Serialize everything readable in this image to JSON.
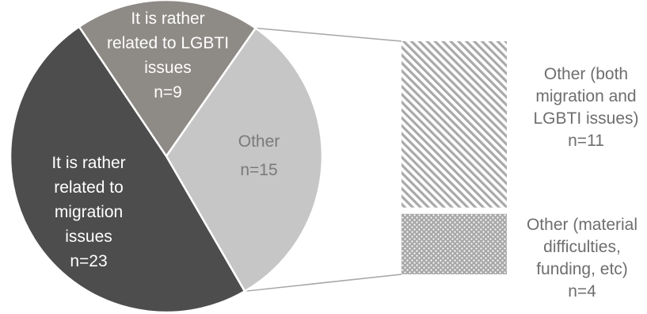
{
  "chart_data": {
    "type": "pie",
    "subtype": "pie-of-bar",
    "slices": [
      {
        "label_lines": [
          "It is rather",
          "related to LGBTI",
          "issues",
          "n=9"
        ],
        "value": 9,
        "color": "#8e8a86",
        "text_color": "#ffffff"
      },
      {
        "label_lines": [
          "Other",
          "n=15"
        ],
        "value": 15,
        "color": "#c6c6c6",
        "text_color": "#7a7a7a"
      },
      {
        "label_lines": [
          "It is rather",
          "related to",
          "migration",
          "issues",
          "n=23"
        ],
        "value": 23,
        "color": "#4d4d4d",
        "text_color": "#ffffff"
      }
    ],
    "breakdown_of": "Other",
    "breakdown": [
      {
        "label_lines": [
          "Other (both",
          "migration and",
          "LGBTI issues)",
          "n=11"
        ],
        "value": 11,
        "pattern": "diagonal-stripes"
      },
      {
        "label_lines": [
          "Other (material",
          "difficulties,",
          "funding, etc)",
          "n=4"
        ],
        "value": 4,
        "pattern": "dots"
      }
    ]
  }
}
